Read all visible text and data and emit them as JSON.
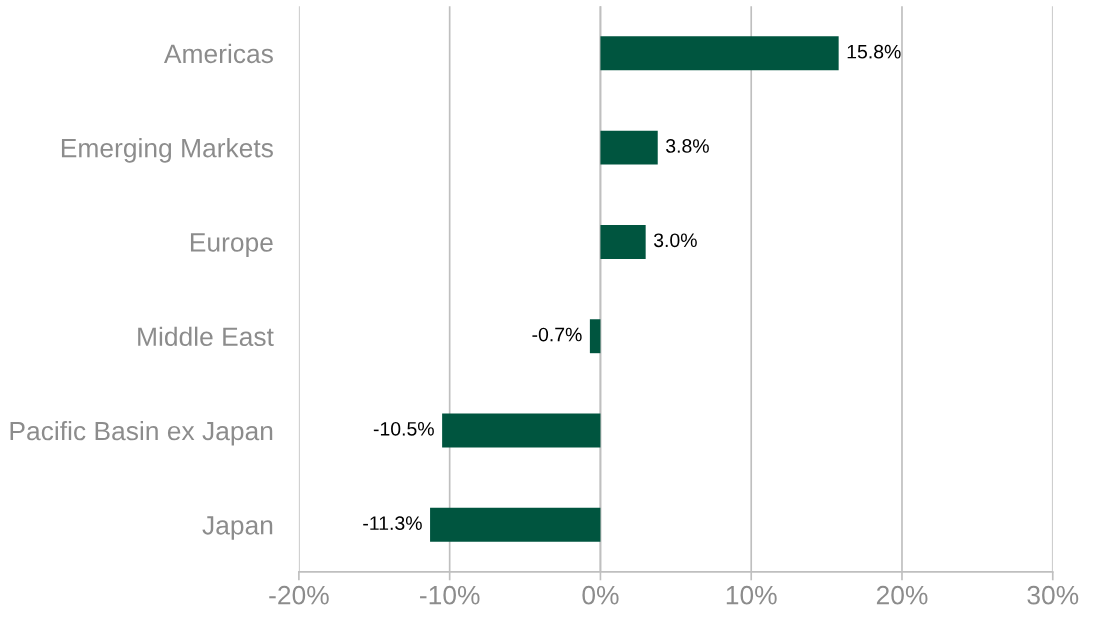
{
  "chart_data": {
    "type": "bar",
    "orientation": "horizontal",
    "categories": [
      "Americas",
      "Emerging Markets",
      "Europe",
      "Middle East",
      "Pacific Basin ex Japan",
      "Japan"
    ],
    "values": [
      15.8,
      3.8,
      3.0,
      -0.7,
      -10.5,
      -11.3
    ],
    "value_labels": [
      "15.8%",
      "3.8%",
      "3.0%",
      "-0.7%",
      "-10.5%",
      "-11.3%"
    ],
    "color": "#00553f",
    "xlim": [
      -20,
      30
    ],
    "xticks": [
      {
        "value": -20,
        "label": "-20%"
      },
      {
        "value": -10,
        "label": "-10%"
      },
      {
        "value": 0,
        "label": "0%"
      },
      {
        "value": 10,
        "label": "10%"
      },
      {
        "value": 20,
        "label": "20%"
      },
      {
        "value": 30,
        "label": "30%"
      }
    ],
    "grid": "x",
    "legend": false
  }
}
